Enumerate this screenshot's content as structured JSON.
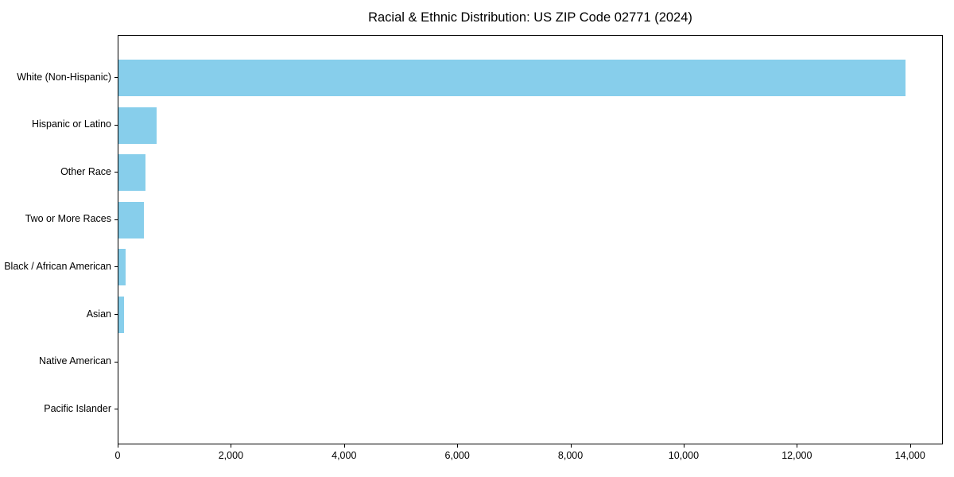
{
  "chart_data": {
    "type": "bar",
    "orientation": "horizontal",
    "title": "Racial & Ethnic Distribution: US ZIP Code 02771 (2024)",
    "categories": [
      "White (Non-Hispanic)",
      "Hispanic or Latino",
      "Other Race",
      "Two or More Races",
      "Black / African American",
      "Asian",
      "Native American",
      "Pacific Islander"
    ],
    "values": [
      13900,
      675,
      480,
      450,
      130,
      105,
      0,
      0
    ],
    "xlabel": "",
    "ylabel": "",
    "xlim": [
      0,
      14580
    ],
    "xticks": [
      0,
      2000,
      4000,
      6000,
      8000,
      10000,
      12000,
      14000
    ],
    "xtick_labels": [
      "0",
      "2,000",
      "4,000",
      "6,000",
      "8,000",
      "10,000",
      "12,000",
      "14,000"
    ],
    "bar_color": "#87CEEB",
    "spine_color": "#000000",
    "text_color": "#000000",
    "grid": false,
    "legend": null
  }
}
